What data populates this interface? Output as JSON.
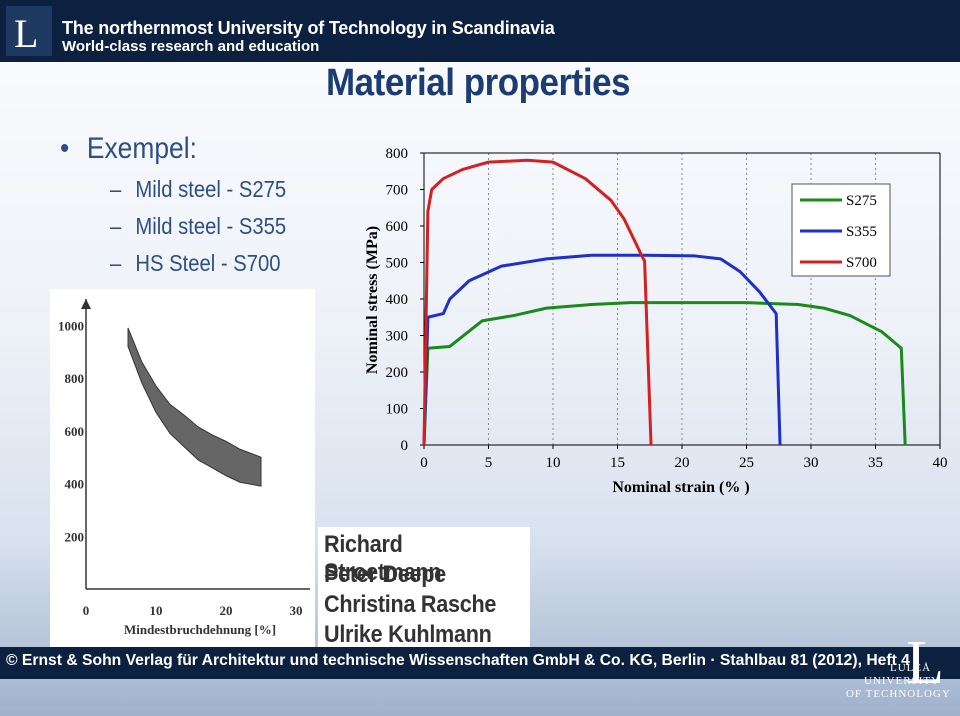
{
  "header": {
    "logo_letter": "L",
    "line1": "The northernmost University of Technology in Scandinavia",
    "line2": "World-class research and education"
  },
  "slide": {
    "title": "Material properties",
    "bullet": "Exempel:",
    "sub_items": [
      "Mild steel - S275",
      "Mild steel - S355",
      "HS Steel - S700"
    ]
  },
  "names": [
    "Richard Stroetmann",
    "Peter Deepe",
    "Christina Rasche",
    "Ulrike Kuhlmann"
  ],
  "footer": {
    "citation": "© Ernst & Sohn Verlag für Architektur und technische Wissenschaften GmbH & Co. KG, Berlin · Stahlbau 81 (2012), Heft 4",
    "university_lines": [
      "LULEÅ",
      "UNIVERSITY",
      "OF TECHNOLOGY"
    ],
    "university_letter": "L"
  },
  "colors": {
    "header_bg": "#0c2140",
    "title": "#1b3d74",
    "s275": "#1a8a1a",
    "s355": "#1f2fc9",
    "s700": "#d42020"
  },
  "chart_data": [
    {
      "type": "line",
      "xlabel": "Nominal strain (% )",
      "ylabel": "Nominal stress (MPa)",
      "xlim": [
        0,
        40
      ],
      "ylim": [
        0,
        800
      ],
      "xticks": [
        0,
        5,
        10,
        15,
        20,
        25,
        30,
        35,
        40
      ],
      "yticks": [
        0,
        100,
        200,
        300,
        400,
        500,
        600,
        700,
        800
      ],
      "grid": "vertical dashed",
      "legend_position": "top-right",
      "series": [
        {
          "name": "S275",
          "color": "#1a8a1a",
          "x": [
            0,
            0.3,
            2,
            4.5,
            7,
            9.5,
            13,
            16,
            20,
            25,
            29,
            31,
            33,
            35.5,
            37,
            37.3
          ],
          "y": [
            0,
            265,
            270,
            340,
            355,
            375,
            385,
            390,
            390,
            390,
            385,
            375,
            355,
            310,
            265,
            0
          ]
        },
        {
          "name": "S355",
          "color": "#1f2fc9",
          "x": [
            0,
            0.3,
            1.5,
            2,
            3.5,
            6,
            9.5,
            13,
            17,
            21,
            23,
            24.5,
            26,
            27.3,
            27.6
          ],
          "y": [
            0,
            350,
            360,
            400,
            450,
            490,
            510,
            520,
            520,
            518,
            510,
            475,
            420,
            360,
            0
          ]
        },
        {
          "name": "S700",
          "color": "#d42020",
          "x": [
            0,
            0.3,
            0.6,
            1.5,
            3,
            5,
            8,
            10,
            12.5,
            14.5,
            15.5,
            17,
            17.1,
            17.6
          ],
          "y": [
            0,
            640,
            700,
            730,
            755,
            775,
            780,
            775,
            730,
            670,
            620,
            510,
            505,
            0
          ]
        }
      ]
    },
    {
      "type": "area",
      "xlabel": "Mindestbruchdehnung [%]",
      "ylabel": "",
      "xlim": [
        0,
        32
      ],
      "ylim": [
        0,
        1100
      ],
      "xticks": [
        0,
        10,
        20,
        30
      ],
      "yticks": [
        200,
        400,
        600,
        800,
        1000
      ],
      "band_upper": {
        "x": [
          6,
          8,
          10,
          12,
          14,
          16,
          18,
          20,
          22,
          25
        ],
        "y": [
          990,
          860,
          770,
          700,
          660,
          615,
          585,
          560,
          530,
          500
        ]
      },
      "band_lower": {
        "x": [
          6,
          8,
          10,
          12,
          14,
          16,
          18,
          20,
          22,
          25
        ],
        "y": [
          920,
          780,
          670,
          590,
          540,
          490,
          460,
          430,
          405,
          390
        ]
      },
      "band_color": "#666666"
    }
  ]
}
